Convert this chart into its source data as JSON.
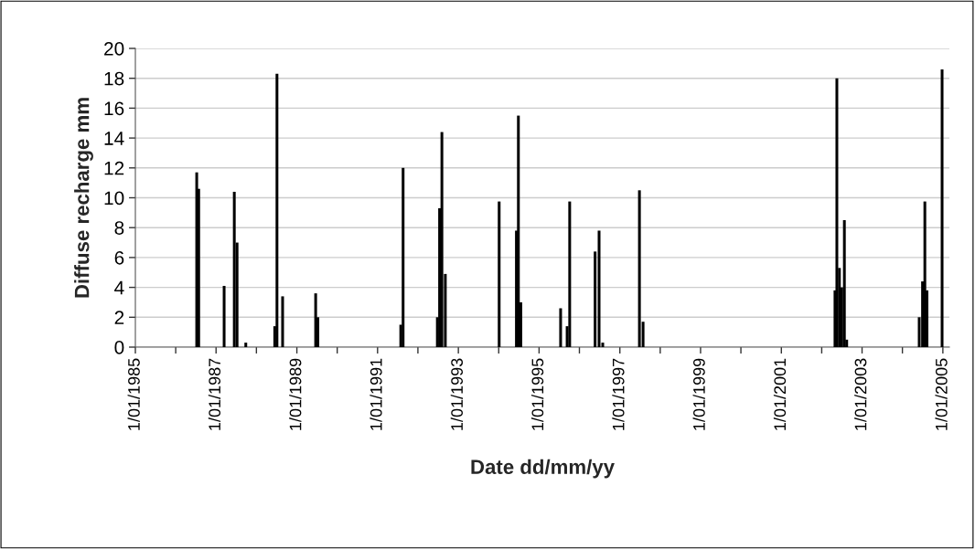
{
  "chart_data": {
    "type": "bar",
    "xlabel": "Date dd/mm/yy",
    "ylabel": "Diffuse recharge mm",
    "x": [
      "1986-07-10",
      "1986-07-28",
      "1987-03-15",
      "1987-06-15",
      "1987-07-10",
      "1987-09-27",
      "1988-06-15",
      "1988-07-05",
      "1988-08-25",
      "1989-06-20",
      "1989-07-10",
      "1991-07-30",
      "1991-08-20",
      "1992-06-25",
      "1992-07-15",
      "1992-08-05",
      "1992-09-05",
      "1994-01-05",
      "1994-06-10",
      "1994-06-28",
      "1994-07-20",
      "1995-07-15",
      "1995-09-12",
      "1995-10-05",
      "1996-05-22",
      "1996-06-27",
      "1996-07-30",
      "1997-06-27",
      "1997-07-30",
      "2002-05-01",
      "2002-05-18",
      "2002-06-10",
      "2002-07-01",
      "2002-07-25",
      "2002-08-15",
      "2004-06-01",
      "2004-07-01",
      "2004-07-22",
      "2004-08-10",
      "2004-12-25"
    ],
    "series": [
      {
        "color": "#000000",
        "values": [
          11.7,
          10.6,
          4.1,
          10.4,
          7.0,
          0.3,
          1.4,
          18.3,
          3.4,
          3.6,
          2.0,
          1.5,
          12.0,
          2.0,
          9.3,
          14.4,
          4.9,
          9.75,
          7.8,
          15.5,
          3.0,
          2.6,
          1.4,
          9.75,
          6.4,
          7.8,
          0.3,
          10.5,
          1.7,
          3.8,
          18.0,
          5.3,
          4.0,
          8.5,
          0.5,
          2.0,
          4.4,
          9.75,
          3.8,
          18.6
        ]
      }
    ],
    "xlim": [
      "1985-01-01",
      "2005-03-01"
    ],
    "xticks": [
      {
        "value": "1985-01-01",
        "label": "1/01/1985"
      },
      {
        "value": "1986-01-01",
        "label": null
      },
      {
        "value": "1987-01-01",
        "label": "1/01/1987"
      },
      {
        "value": "1988-01-01",
        "label": null
      },
      {
        "value": "1989-01-01",
        "label": "1/01/1989"
      },
      {
        "value": "1990-01-01",
        "label": null
      },
      {
        "value": "1991-01-01",
        "label": "1/01/1991"
      },
      {
        "value": "1992-01-01",
        "label": null
      },
      {
        "value": "1993-01-01",
        "label": "1/01/1993"
      },
      {
        "value": "1994-01-01",
        "label": null
      },
      {
        "value": "1995-01-01",
        "label": "1/01/1995"
      },
      {
        "value": "1996-01-01",
        "label": null
      },
      {
        "value": "1997-01-01",
        "label": "1/01/1997"
      },
      {
        "value": "1998-01-01",
        "label": null
      },
      {
        "value": "1999-01-01",
        "label": "1/01/1999"
      },
      {
        "value": "2000-01-01",
        "label": null
      },
      {
        "value": "2001-01-01",
        "label": "1/01/2001"
      },
      {
        "value": "2002-01-01",
        "label": null
      },
      {
        "value": "2003-01-01",
        "label": "1/01/2003"
      },
      {
        "value": "2004-01-01",
        "label": null
      },
      {
        "value": "2005-01-01",
        "label": "1/01/2005"
      }
    ],
    "ylim": [
      0,
      20
    ],
    "yticks": [
      0,
      2,
      4,
      6,
      8,
      10,
      12,
      14,
      16,
      18,
      20
    ],
    "grid": "y"
  }
}
